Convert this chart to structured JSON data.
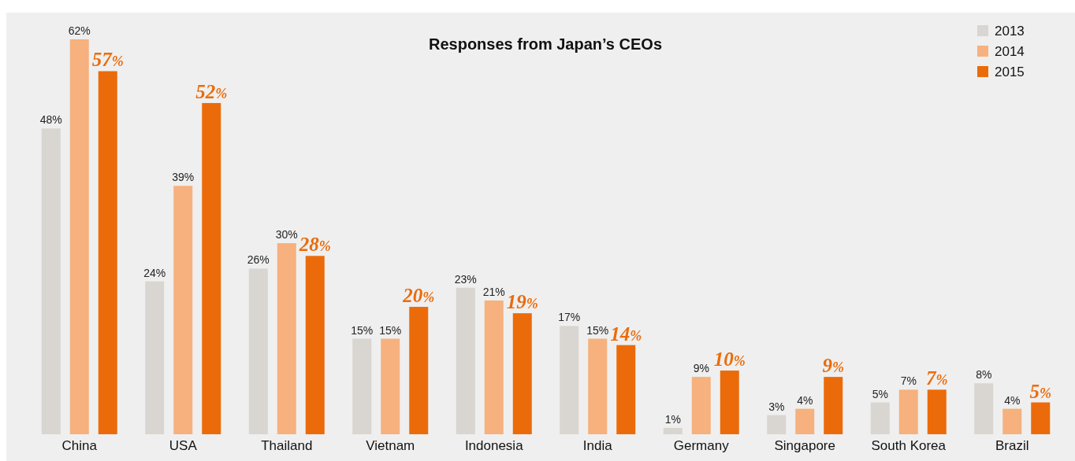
{
  "chart_data": {
    "type": "bar",
    "title": "Responses from Japan’s CEOs",
    "categories": [
      "China",
      "USA",
      "Thailand",
      "Vietnam",
      "Indonesia",
      "India",
      "Germany",
      "Singapore",
      "South Korea",
      "Brazil"
    ],
    "series": [
      {
        "name": "2013",
        "color": "#d9d5d0",
        "values": [
          48,
          24,
          26,
          15,
          23,
          17,
          1,
          3,
          5,
          8
        ],
        "value_labels": [
          "48%",
          "24%",
          "26%",
          "15%",
          "23%",
          "17%",
          "1%",
          "3%",
          "5%",
          "8%"
        ]
      },
      {
        "name": "2014",
        "color": "#f6b17e",
        "values": [
          62,
          39,
          30,
          15,
          21,
          15,
          9,
          4,
          7,
          4
        ],
        "value_labels": [
          "62%",
          "39%",
          "30%",
          "15%",
          "21%",
          "15%",
          "9%",
          "4%",
          "7%",
          "4%"
        ]
      },
      {
        "name": "2015",
        "color": "#eb6b0a",
        "values": [
          57,
          52,
          28,
          20,
          19,
          14,
          10,
          9,
          7,
          5
        ],
        "value_labels": [
          "57%",
          "52%",
          "28%",
          "20%",
          "19%",
          "14%",
          "10%",
          "9%",
          "7%",
          "5%"
        ]
      }
    ],
    "legend": "top right"
  }
}
